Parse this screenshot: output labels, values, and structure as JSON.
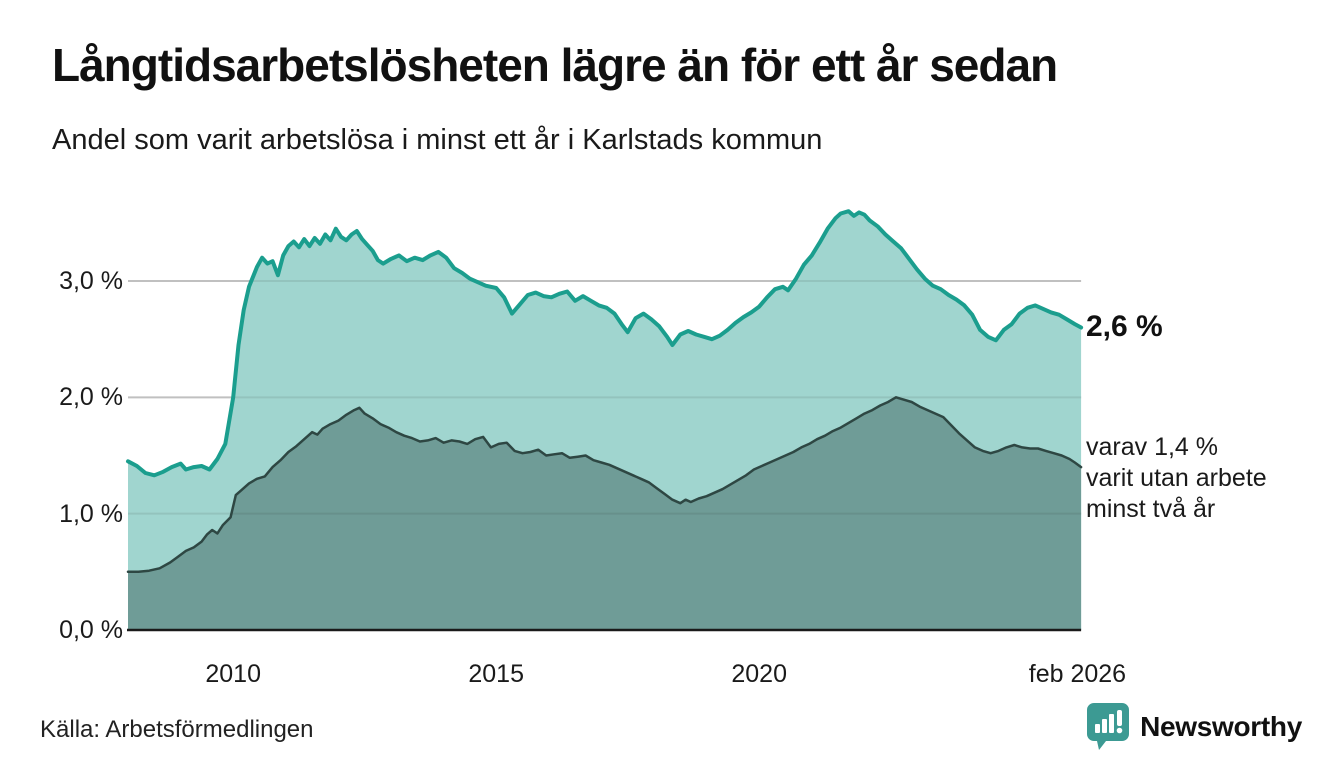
{
  "header": {
    "title": "Långtidsarbetslösheten lägre än för ett år sedan",
    "subtitle": "Andel som varit arbetslösa i minst ett år i Karlstads kommun"
  },
  "annotations": {
    "latest_total": "2,6 %",
    "secondary_note": "varav 1,4 %\nvarit utan arbete\nminst två år"
  },
  "footer": {
    "source": "Källa: Arbetsförmedlingen",
    "logo_text": "Newsworthy"
  },
  "colors": {
    "area_light": "#a0d5cf",
    "area_dark": "#6f9c97",
    "line_total": "#1b9e8e",
    "line_dark": "#2e4743",
    "gridline": "#d2d2d2",
    "gridline_overlay": "rgba(40,40,40,0.10)",
    "axis": "#1a1a1a",
    "brand_teal": "#33918b",
    "text": "#111111"
  },
  "chart_data": {
    "type": "area",
    "title": "Långtidsarbetslösheten lägre än för ett år sedan",
    "subtitle": "Andel som varit arbetslösa i minst ett år i Karlstads kommun",
    "unit": "%",
    "x_range": [
      2008.0,
      2026.12
    ],
    "ylim": [
      0,
      3.7
    ],
    "grid": "horizontal",
    "legend": "none",
    "y_axis": {
      "ticks": [
        {
          "label": "0,0 %",
          "value": 0
        },
        {
          "label": "1,0 %",
          "value": 1
        },
        {
          "label": "2,0 %",
          "value": 2
        },
        {
          "label": "3,0 %",
          "value": 3
        }
      ]
    },
    "x_axis": {
      "ticks": [
        {
          "label": "2010",
          "year": 2010
        },
        {
          "label": "2015",
          "year": 2015
        },
        {
          "label": "2020",
          "year": 2020
        },
        {
          "label": "feb 2026",
          "year": 2026.05
        }
      ]
    },
    "series": [
      {
        "name": "Arbetslösa minst ett år",
        "latest_label": "2,6 %",
        "latest_value": 2.6,
        "points": [
          [
            2008.0,
            1.45
          ],
          [
            2008.17,
            1.41
          ],
          [
            2008.33,
            1.35
          ],
          [
            2008.5,
            1.33
          ],
          [
            2008.67,
            1.36
          ],
          [
            2008.83,
            1.4
          ],
          [
            2009.0,
            1.43
          ],
          [
            2009.1,
            1.38
          ],
          [
            2009.25,
            1.4
          ],
          [
            2009.4,
            1.41
          ],
          [
            2009.55,
            1.38
          ],
          [
            2009.7,
            1.47
          ],
          [
            2009.85,
            1.6
          ],
          [
            2010.0,
            2.0
          ],
          [
            2010.1,
            2.45
          ],
          [
            2010.2,
            2.75
          ],
          [
            2010.3,
            2.95
          ],
          [
            2010.45,
            3.12
          ],
          [
            2010.55,
            3.2
          ],
          [
            2010.65,
            3.15
          ],
          [
            2010.75,
            3.17
          ],
          [
            2010.85,
            3.05
          ],
          [
            2010.95,
            3.22
          ],
          [
            2011.05,
            3.3
          ],
          [
            2011.15,
            3.34
          ],
          [
            2011.25,
            3.29
          ],
          [
            2011.35,
            3.36
          ],
          [
            2011.45,
            3.3
          ],
          [
            2011.55,
            3.37
          ],
          [
            2011.65,
            3.32
          ],
          [
            2011.75,
            3.4
          ],
          [
            2011.85,
            3.35
          ],
          [
            2011.95,
            3.45
          ],
          [
            2012.05,
            3.38
          ],
          [
            2012.15,
            3.35
          ],
          [
            2012.25,
            3.4
          ],
          [
            2012.35,
            3.43
          ],
          [
            2012.45,
            3.36
          ],
          [
            2012.55,
            3.31
          ],
          [
            2012.65,
            3.26
          ],
          [
            2012.75,
            3.18
          ],
          [
            2012.85,
            3.15
          ],
          [
            2013.0,
            3.19
          ],
          [
            2013.15,
            3.22
          ],
          [
            2013.3,
            3.17
          ],
          [
            2013.45,
            3.2
          ],
          [
            2013.6,
            3.18
          ],
          [
            2013.75,
            3.22
          ],
          [
            2013.9,
            3.25
          ],
          [
            2014.05,
            3.2
          ],
          [
            2014.2,
            3.11
          ],
          [
            2014.35,
            3.07
          ],
          [
            2014.5,
            3.02
          ],
          [
            2014.65,
            2.99
          ],
          [
            2014.8,
            2.96
          ],
          [
            2015.0,
            2.94
          ],
          [
            2015.15,
            2.86
          ],
          [
            2015.3,
            2.72
          ],
          [
            2015.45,
            2.8
          ],
          [
            2015.6,
            2.88
          ],
          [
            2015.75,
            2.9
          ],
          [
            2015.9,
            2.87
          ],
          [
            2016.05,
            2.86
          ],
          [
            2016.2,
            2.89
          ],
          [
            2016.35,
            2.91
          ],
          [
            2016.5,
            2.83
          ],
          [
            2016.65,
            2.87
          ],
          [
            2016.8,
            2.83
          ],
          [
            2016.95,
            2.79
          ],
          [
            2017.1,
            2.77
          ],
          [
            2017.25,
            2.72
          ],
          [
            2017.4,
            2.62
          ],
          [
            2017.5,
            2.56
          ],
          [
            2017.65,
            2.68
          ],
          [
            2017.8,
            2.72
          ],
          [
            2017.95,
            2.67
          ],
          [
            2018.1,
            2.61
          ],
          [
            2018.25,
            2.52
          ],
          [
            2018.35,
            2.45
          ],
          [
            2018.5,
            2.54
          ],
          [
            2018.65,
            2.57
          ],
          [
            2018.8,
            2.54
          ],
          [
            2018.95,
            2.52
          ],
          [
            2019.1,
            2.5
          ],
          [
            2019.25,
            2.53
          ],
          [
            2019.4,
            2.58
          ],
          [
            2019.55,
            2.64
          ],
          [
            2019.7,
            2.69
          ],
          [
            2019.85,
            2.73
          ],
          [
            2020.0,
            2.78
          ],
          [
            2020.15,
            2.86
          ],
          [
            2020.3,
            2.93
          ],
          [
            2020.45,
            2.95
          ],
          [
            2020.55,
            2.92
          ],
          [
            2020.7,
            3.02
          ],
          [
            2020.85,
            3.14
          ],
          [
            2021.0,
            3.22
          ],
          [
            2021.15,
            3.33
          ],
          [
            2021.3,
            3.45
          ],
          [
            2021.45,
            3.54
          ],
          [
            2021.55,
            3.58
          ],
          [
            2021.7,
            3.6
          ],
          [
            2021.8,
            3.56
          ],
          [
            2021.9,
            3.59
          ],
          [
            2022.0,
            3.57
          ],
          [
            2022.1,
            3.52
          ],
          [
            2022.25,
            3.47
          ],
          [
            2022.4,
            3.4
          ],
          [
            2022.55,
            3.34
          ],
          [
            2022.7,
            3.28
          ],
          [
            2022.85,
            3.19
          ],
          [
            2023.0,
            3.1
          ],
          [
            2023.15,
            3.02
          ],
          [
            2023.3,
            2.96
          ],
          [
            2023.45,
            2.93
          ],
          [
            2023.6,
            2.88
          ],
          [
            2023.75,
            2.84
          ],
          [
            2023.9,
            2.79
          ],
          [
            2024.05,
            2.71
          ],
          [
            2024.2,
            2.58
          ],
          [
            2024.35,
            2.52
          ],
          [
            2024.5,
            2.49
          ],
          [
            2024.65,
            2.58
          ],
          [
            2024.8,
            2.63
          ],
          [
            2024.95,
            2.72
          ],
          [
            2025.1,
            2.77
          ],
          [
            2025.25,
            2.79
          ],
          [
            2025.4,
            2.76
          ],
          [
            2025.55,
            2.73
          ],
          [
            2025.7,
            2.71
          ],
          [
            2025.85,
            2.67
          ],
          [
            2026.0,
            2.63
          ],
          [
            2026.12,
            2.6
          ]
        ]
      },
      {
        "name": "varav utan arbete minst två år",
        "latest_label": "1,4 %",
        "latest_value": 1.4,
        "points": [
          [
            2008.0,
            0.5
          ],
          [
            2008.2,
            0.5
          ],
          [
            2008.4,
            0.51
          ],
          [
            2008.6,
            0.53
          ],
          [
            2008.8,
            0.58
          ],
          [
            2008.95,
            0.63
          ],
          [
            2009.1,
            0.68
          ],
          [
            2009.25,
            0.71
          ],
          [
            2009.4,
            0.76
          ],
          [
            2009.5,
            0.82
          ],
          [
            2009.6,
            0.86
          ],
          [
            2009.7,
            0.83
          ],
          [
            2009.8,
            0.9
          ],
          [
            2009.95,
            0.97
          ],
          [
            2010.05,
            1.16
          ],
          [
            2010.15,
            1.2
          ],
          [
            2010.3,
            1.26
          ],
          [
            2010.45,
            1.3
          ],
          [
            2010.6,
            1.32
          ],
          [
            2010.75,
            1.4
          ],
          [
            2010.9,
            1.46
          ],
          [
            2011.05,
            1.53
          ],
          [
            2011.2,
            1.58
          ],
          [
            2011.35,
            1.64
          ],
          [
            2011.5,
            1.7
          ],
          [
            2011.6,
            1.68
          ],
          [
            2011.7,
            1.73
          ],
          [
            2011.85,
            1.77
          ],
          [
            2012.0,
            1.8
          ],
          [
            2012.15,
            1.85
          ],
          [
            2012.3,
            1.89
          ],
          [
            2012.4,
            1.91
          ],
          [
            2012.5,
            1.86
          ],
          [
            2012.65,
            1.82
          ],
          [
            2012.8,
            1.77
          ],
          [
            2012.95,
            1.74
          ],
          [
            2013.1,
            1.7
          ],
          [
            2013.25,
            1.67
          ],
          [
            2013.4,
            1.65
          ],
          [
            2013.55,
            1.62
          ],
          [
            2013.7,
            1.63
          ],
          [
            2013.85,
            1.65
          ],
          [
            2014.0,
            1.61
          ],
          [
            2014.15,
            1.63
          ],
          [
            2014.3,
            1.62
          ],
          [
            2014.45,
            1.6
          ],
          [
            2014.6,
            1.64
          ],
          [
            2014.75,
            1.66
          ],
          [
            2014.9,
            1.57
          ],
          [
            2015.05,
            1.6
          ],
          [
            2015.2,
            1.61
          ],
          [
            2015.35,
            1.54
          ],
          [
            2015.5,
            1.52
          ],
          [
            2015.65,
            1.53
          ],
          [
            2015.8,
            1.55
          ],
          [
            2015.95,
            1.5
          ],
          [
            2016.1,
            1.51
          ],
          [
            2016.25,
            1.52
          ],
          [
            2016.4,
            1.48
          ],
          [
            2016.55,
            1.49
          ],
          [
            2016.7,
            1.5
          ],
          [
            2016.85,
            1.46
          ],
          [
            2017.0,
            1.44
          ],
          [
            2017.15,
            1.42
          ],
          [
            2017.3,
            1.39
          ],
          [
            2017.45,
            1.36
          ],
          [
            2017.6,
            1.33
          ],
          [
            2017.75,
            1.3
          ],
          [
            2017.9,
            1.27
          ],
          [
            2018.05,
            1.22
          ],
          [
            2018.2,
            1.17
          ],
          [
            2018.35,
            1.12
          ],
          [
            2018.5,
            1.09
          ],
          [
            2018.6,
            1.12
          ],
          [
            2018.7,
            1.1
          ],
          [
            2018.85,
            1.13
          ],
          [
            2019.0,
            1.15
          ],
          [
            2019.15,
            1.18
          ],
          [
            2019.3,
            1.21
          ],
          [
            2019.45,
            1.25
          ],
          [
            2019.6,
            1.29
          ],
          [
            2019.75,
            1.33
          ],
          [
            2019.9,
            1.38
          ],
          [
            2020.05,
            1.41
          ],
          [
            2020.2,
            1.44
          ],
          [
            2020.35,
            1.47
          ],
          [
            2020.5,
            1.5
          ],
          [
            2020.65,
            1.53
          ],
          [
            2020.8,
            1.57
          ],
          [
            2020.95,
            1.6
          ],
          [
            2021.1,
            1.64
          ],
          [
            2021.25,
            1.67
          ],
          [
            2021.4,
            1.71
          ],
          [
            2021.55,
            1.74
          ],
          [
            2021.7,
            1.78
          ],
          [
            2021.85,
            1.82
          ],
          [
            2022.0,
            1.86
          ],
          [
            2022.15,
            1.89
          ],
          [
            2022.3,
            1.93
          ],
          [
            2022.45,
            1.96
          ],
          [
            2022.6,
            2.0
          ],
          [
            2022.75,
            1.98
          ],
          [
            2022.9,
            1.96
          ],
          [
            2023.05,
            1.92
          ],
          [
            2023.2,
            1.89
          ],
          [
            2023.35,
            1.86
          ],
          [
            2023.5,
            1.83
          ],
          [
            2023.65,
            1.76
          ],
          [
            2023.8,
            1.69
          ],
          [
            2023.95,
            1.63
          ],
          [
            2024.1,
            1.57
          ],
          [
            2024.25,
            1.54
          ],
          [
            2024.4,
            1.52
          ],
          [
            2024.55,
            1.54
          ],
          [
            2024.7,
            1.57
          ],
          [
            2024.85,
            1.59
          ],
          [
            2025.0,
            1.57
          ],
          [
            2025.15,
            1.56
          ],
          [
            2025.3,
            1.56
          ],
          [
            2025.45,
            1.54
          ],
          [
            2025.6,
            1.52
          ],
          [
            2025.75,
            1.5
          ],
          [
            2025.9,
            1.47
          ],
          [
            2026.0,
            1.44
          ],
          [
            2026.12,
            1.4
          ]
        ]
      }
    ]
  }
}
